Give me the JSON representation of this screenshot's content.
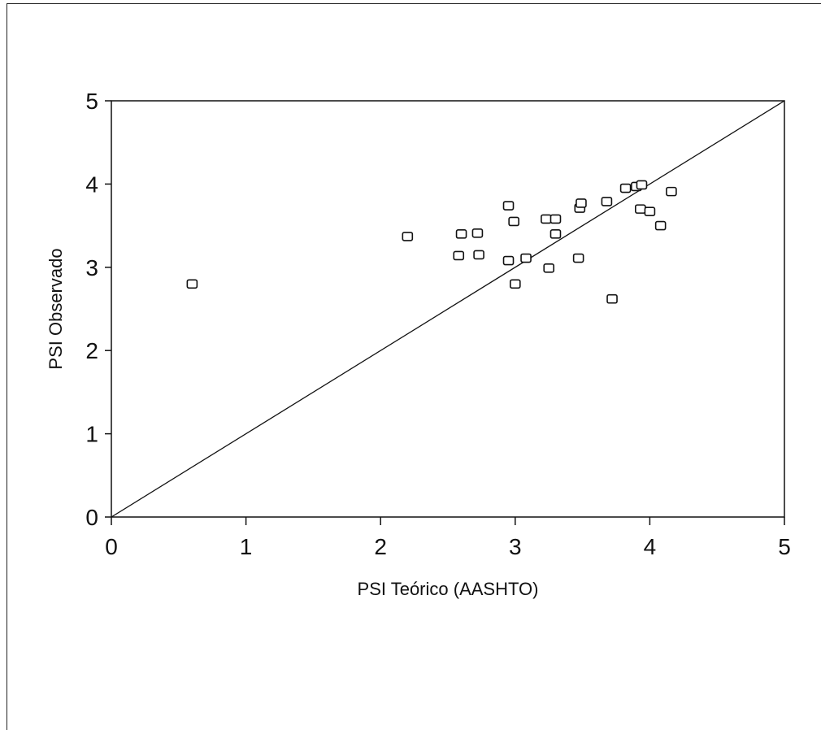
{
  "chart_data": {
    "type": "scatter",
    "title": "",
    "xlabel": "PSI Teórico (AASHTO)",
    "ylabel": "PSI Observado",
    "xlim": [
      0,
      5
    ],
    "ylim": [
      0,
      5
    ],
    "xticks": [
      0,
      1,
      2,
      3,
      4,
      5
    ],
    "yticks": [
      0,
      1,
      2,
      3,
      4,
      5
    ],
    "grid": false,
    "marker": "open-square",
    "reference_line": {
      "from": [
        0,
        0
      ],
      "to": [
        5,
        5
      ]
    },
    "points": [
      {
        "x": 0.6,
        "y": 2.8
      },
      {
        "x": 2.2,
        "y": 3.37
      },
      {
        "x": 2.6,
        "y": 3.4
      },
      {
        "x": 2.72,
        "y": 3.41
      },
      {
        "x": 2.58,
        "y": 3.14
      },
      {
        "x": 2.73,
        "y": 3.15
      },
      {
        "x": 2.95,
        "y": 3.74
      },
      {
        "x": 2.99,
        "y": 3.55
      },
      {
        "x": 2.95,
        "y": 3.08
      },
      {
        "x": 3.0,
        "y": 2.8
      },
      {
        "x": 3.08,
        "y": 3.11
      },
      {
        "x": 3.23,
        "y": 3.58
      },
      {
        "x": 3.3,
        "y": 3.58
      },
      {
        "x": 3.3,
        "y": 3.4
      },
      {
        "x": 3.25,
        "y": 2.99
      },
      {
        "x": 3.47,
        "y": 3.11
      },
      {
        "x": 3.48,
        "y": 3.71
      },
      {
        "x": 3.49,
        "y": 3.77
      },
      {
        "x": 3.68,
        "y": 3.79
      },
      {
        "x": 3.72,
        "y": 2.62
      },
      {
        "x": 3.82,
        "y": 3.95
      },
      {
        "x": 3.9,
        "y": 3.97
      },
      {
        "x": 3.94,
        "y": 3.99
      },
      {
        "x": 3.93,
        "y": 3.7
      },
      {
        "x": 4.0,
        "y": 3.67
      },
      {
        "x": 4.08,
        "y": 3.5
      },
      {
        "x": 4.16,
        "y": 3.91
      }
    ]
  }
}
